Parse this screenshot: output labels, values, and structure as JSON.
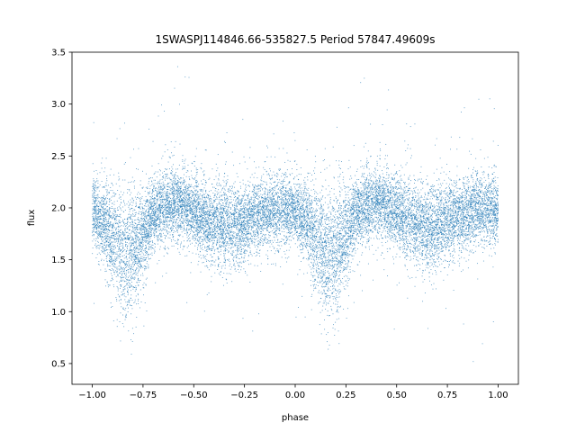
{
  "chart_data": {
    "type": "scatter",
    "title": "1SWASPJ114846.66-535827.5 Period 57847.49609s",
    "xlabel": "phase",
    "ylabel": "flux",
    "xlim": [
      -1.1,
      1.1
    ],
    "ylim": [
      0.3,
      3.5
    ],
    "xticks": [
      -1.0,
      -0.75,
      -0.5,
      -0.25,
      0.0,
      0.25,
      0.5,
      0.75,
      1.0
    ],
    "xtick_labels": [
      "−1.00",
      "−0.75",
      "−0.50",
      "−0.25",
      "0.00",
      "0.25",
      "0.50",
      "0.75",
      "1.00"
    ],
    "yticks": [
      0.5,
      1.0,
      1.5,
      2.0,
      2.5,
      3.0,
      3.5
    ],
    "ytick_labels": [
      "0.5",
      "1.0",
      "1.5",
      "2.0",
      "2.5",
      "3.0",
      "3.5"
    ],
    "grid": false,
    "marker_color": "#1f77b4",
    "series": [
      {
        "phase_range": [
          -1.0,
          1.0
        ],
        "approx_count": 16000,
        "profile_phase": [
          0.0,
          0.05,
          0.1,
          0.15,
          0.18,
          0.2,
          0.25,
          0.3,
          0.35,
          0.42,
          0.5,
          0.55,
          0.6,
          0.68,
          0.75,
          0.8,
          0.9,
          1.0
        ],
        "profile_flux": [
          1.97,
          1.88,
          1.72,
          1.58,
          1.55,
          1.57,
          1.75,
          1.93,
          2.02,
          2.05,
          1.96,
          1.88,
          1.84,
          1.82,
          1.87,
          1.92,
          1.98,
          1.97
        ],
        "flux_spread": 0.17
      }
    ]
  }
}
